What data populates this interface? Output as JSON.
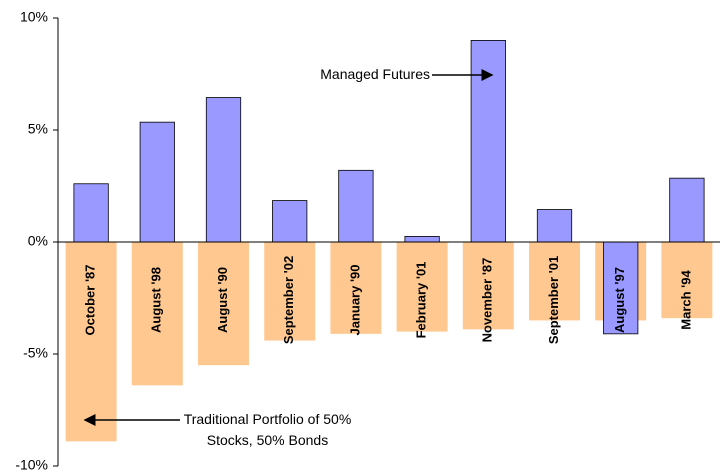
{
  "chart_data": {
    "type": "bar",
    "categories": [
      "October '87",
      "August '98",
      "August '90",
      "September '02",
      "January '90",
      "February '01",
      "November '87",
      "September '01",
      "August '97",
      "March '94"
    ],
    "series": [
      {
        "name": "Managed Futures",
        "color": "#9999ff",
        "values": [
          2.6,
          5.35,
          6.45,
          1.85,
          3.2,
          0.25,
          9.0,
          1.45,
          -4.1,
          2.85
        ]
      },
      {
        "name": "Traditional Portfolio of 50% Stocks, 50% Bonds",
        "color": "#ffc891",
        "values": [
          -8.9,
          -6.4,
          -5.5,
          -4.4,
          -4.1,
          -4.0,
          -3.9,
          -3.5,
          -3.5,
          -3.4
        ]
      }
    ],
    "ylim": [
      -10,
      10
    ],
    "yticks": [
      {
        "value": -10,
        "label": "-10%"
      },
      {
        "value": -5,
        "label": "-5%"
      },
      {
        "value": 0,
        "label": "0%"
      },
      {
        "value": 5,
        "label": "5%"
      },
      {
        "value": 10,
        "label": "10%"
      }
    ]
  }
}
